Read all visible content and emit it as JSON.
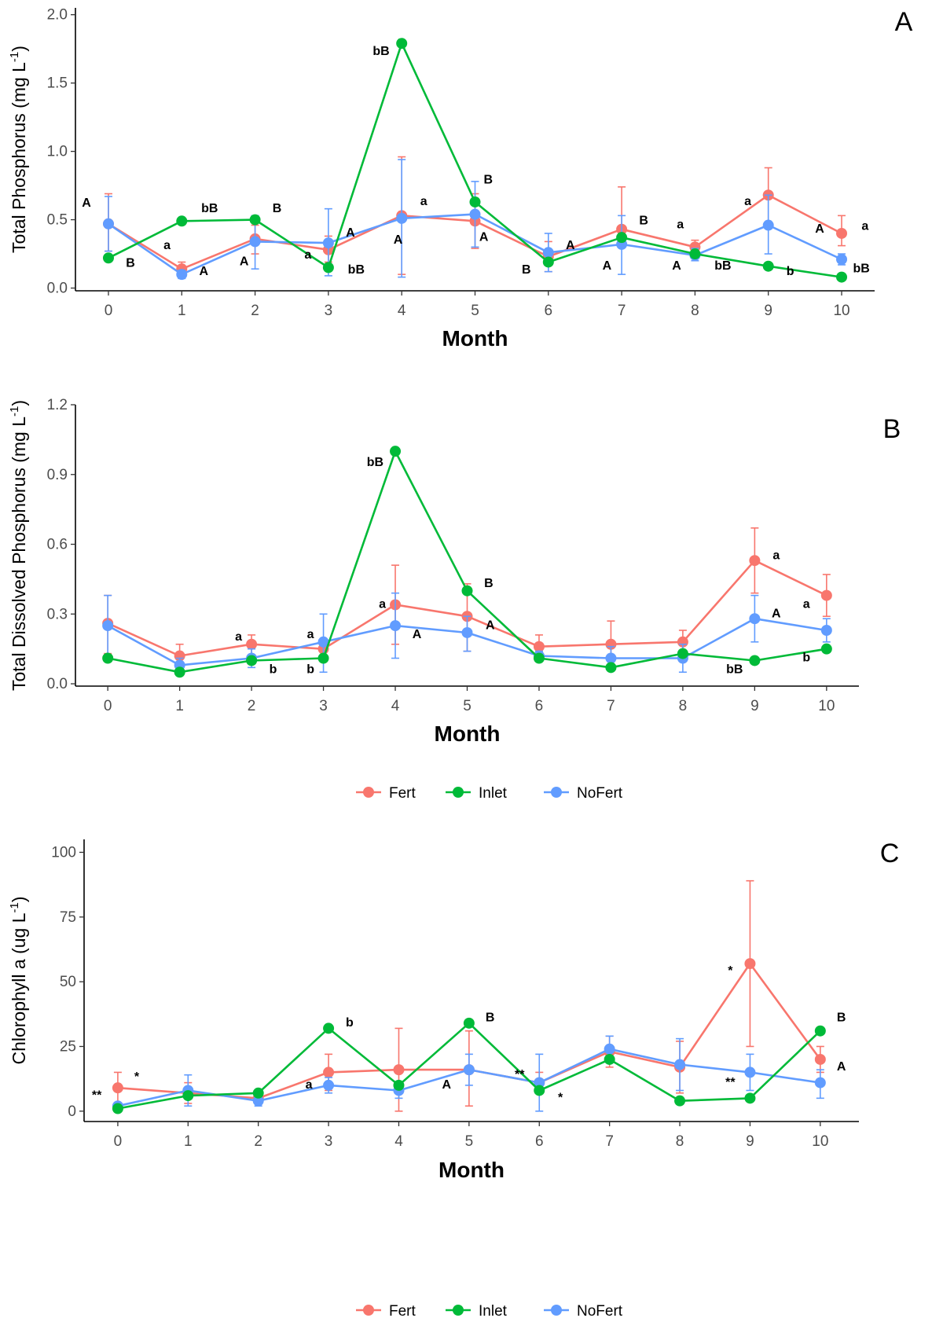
{
  "colors": {
    "Fert": "#F8766D",
    "Inlet": "#00BA38",
    "NoFert": "#619CFF"
  },
  "legend": {
    "entries": [
      "Fert",
      "Inlet",
      "NoFert"
    ]
  },
  "chart_data": [
    {
      "type": "line",
      "panel_label": "A",
      "title": "",
      "xlabel": "Month",
      "ylabel_main": "Total Phosphorus (mg L",
      "ylabel_sup": "-1",
      "ylabel_tail": ")",
      "x": [
        0,
        1,
        2,
        3,
        4,
        5,
        6,
        7,
        8,
        9,
        10
      ],
      "x_ticks": [
        "0",
        "1",
        "2",
        "3",
        "4",
        "5",
        "6",
        "7",
        "8",
        "9",
        "10"
      ],
      "y_ticks": [
        0.0,
        0.5,
        1.0,
        1.5,
        2.0
      ],
      "y_tick_labels": [
        "0.0",
        "0.5",
        "1.0",
        "1.5",
        "2.0"
      ],
      "ylim": [
        -0.02,
        2.05
      ],
      "grid": false,
      "series": [
        {
          "name": "Fert",
          "values": [
            0.47,
            0.14,
            0.36,
            0.28,
            0.53,
            0.49,
            0.23,
            0.43,
            0.3,
            0.68,
            0.4
          ],
          "err_low": [
            0.27,
            0.09,
            0.25,
            0.19,
            0.1,
            0.29,
            0.12,
            0.3,
            0.26,
            0.47,
            0.31
          ],
          "err_high": [
            0.69,
            0.19,
            0.46,
            0.38,
            0.96,
            0.69,
            0.34,
            0.74,
            0.35,
            0.88,
            0.53
          ]
        },
        {
          "name": "Inlet",
          "values": [
            0.22,
            0.49,
            0.5,
            0.15,
            1.79,
            0.63,
            0.19,
            0.37,
            0.25,
            0.16,
            0.08
          ],
          "err_low": [
            0.22,
            0.49,
            0.5,
            0.15,
            1.79,
            0.63,
            0.19,
            0.37,
            0.25,
            0.16,
            0.08
          ],
          "err_high": [
            0.22,
            0.49,
            0.5,
            0.15,
            1.79,
            0.63,
            0.19,
            0.37,
            0.25,
            0.16,
            0.08
          ]
        },
        {
          "name": "NoFert",
          "values": [
            0.47,
            0.1,
            0.34,
            0.33,
            0.51,
            0.54,
            0.26,
            0.32,
            0.24,
            0.46,
            0.21
          ],
          "err_low": [
            0.27,
            0.07,
            0.14,
            0.09,
            0.08,
            0.3,
            0.12,
            0.1,
            0.2,
            0.25,
            0.17
          ],
          "err_high": [
            0.67,
            0.13,
            0.53,
            0.58,
            0.94,
            0.78,
            0.4,
            0.53,
            0.29,
            0.68,
            0.25
          ]
        }
      ],
      "annotations": [
        {
          "text": "A",
          "x": -0.3,
          "y": 0.62
        },
        {
          "text": "B",
          "x": 0.3,
          "y": 0.18
        },
        {
          "text": "a",
          "x": 0.8,
          "y": 0.31
        },
        {
          "text": "A",
          "x": 1.3,
          "y": 0.12
        },
        {
          "text": "bB",
          "x": 1.38,
          "y": 0.58
        },
        {
          "text": "A",
          "x": 1.85,
          "y": 0.19
        },
        {
          "text": "B",
          "x": 2.3,
          "y": 0.58
        },
        {
          "text": "a",
          "x": 2.72,
          "y": 0.24
        },
        {
          "text": "A",
          "x": 3.3,
          "y": 0.4
        },
        {
          "text": "bB",
          "x": 3.38,
          "y": 0.13
        },
        {
          "text": "A",
          "x": 3.95,
          "y": 0.35
        },
        {
          "text": "bB",
          "x": 3.72,
          "y": 1.73
        },
        {
          "text": "a",
          "x": 4.3,
          "y": 0.63
        },
        {
          "text": "A",
          "x": 5.12,
          "y": 0.37
        },
        {
          "text": "B",
          "x": 5.18,
          "y": 0.79
        },
        {
          "text": "B",
          "x": 5.7,
          "y": 0.13
        },
        {
          "text": "A",
          "x": 6.3,
          "y": 0.31
        },
        {
          "text": "A",
          "x": 6.8,
          "y": 0.16
        },
        {
          "text": "B",
          "x": 7.3,
          "y": 0.49
        },
        {
          "text": "a",
          "x": 7.8,
          "y": 0.46
        },
        {
          "text": "A",
          "x": 7.75,
          "y": 0.16
        },
        {
          "text": "bB",
          "x": 8.38,
          "y": 0.16
        },
        {
          "text": "a",
          "x": 8.72,
          "y": 0.63
        },
        {
          "text": "b",
          "x": 9.3,
          "y": 0.12
        },
        {
          "text": "A",
          "x": 9.7,
          "y": 0.43
        },
        {
          "text": "a",
          "x": 10.32,
          "y": 0.45
        },
        {
          "text": "bB",
          "x": 10.27,
          "y": 0.14
        }
      ]
    },
    {
      "type": "line",
      "panel_label": "B",
      "title": "",
      "xlabel": "Month",
      "ylabel_main": "Total Dissolved Phosphorus (mg L",
      "ylabel_sup": "-1",
      "ylabel_tail": ")",
      "x": [
        0,
        1,
        2,
        3,
        4,
        5,
        6,
        7,
        8,
        9,
        10
      ],
      "x_ticks": [
        "0",
        "1",
        "2",
        "3",
        "4",
        "5",
        "6",
        "7",
        "8",
        "9",
        "10"
      ],
      "y_ticks": [
        0.0,
        0.3,
        0.6,
        0.9,
        1.2
      ],
      "y_tick_labels": [
        "0.0",
        "0.3",
        "0.6",
        "0.9",
        "1.2"
      ],
      "ylim": [
        -0.01,
        1.2
      ],
      "grid": false,
      "series": [
        {
          "name": "Fert",
          "values": [
            0.26,
            0.12,
            0.17,
            0.15,
            0.34,
            0.29,
            0.16,
            0.17,
            0.18,
            0.53,
            0.38
          ],
          "err_low": [
            0.13,
            0.07,
            0.12,
            0.12,
            0.17,
            0.14,
            0.11,
            0.06,
            0.13,
            0.39,
            0.29
          ],
          "err_high": [
            0.38,
            0.17,
            0.21,
            0.18,
            0.51,
            0.43,
            0.21,
            0.27,
            0.23,
            0.67,
            0.47
          ]
        },
        {
          "name": "Inlet",
          "values": [
            0.11,
            0.05,
            0.1,
            0.11,
            1.0,
            0.4,
            0.11,
            0.07,
            0.13,
            0.1,
            0.15
          ],
          "err_low": [
            0.11,
            0.05,
            0.1,
            0.11,
            1.0,
            0.4,
            0.11,
            0.07,
            0.13,
            0.1,
            0.15
          ],
          "err_high": [
            0.11,
            0.05,
            0.1,
            0.11,
            1.0,
            0.4,
            0.11,
            0.07,
            0.13,
            0.1,
            0.15
          ]
        },
        {
          "name": "NoFert",
          "values": [
            0.25,
            0.08,
            0.11,
            0.18,
            0.25,
            0.22,
            0.12,
            0.11,
            0.11,
            0.28,
            0.23
          ],
          "err_low": [
            0.12,
            0.06,
            0.07,
            0.05,
            0.11,
            0.14,
            0.1,
            0.06,
            0.05,
            0.18,
            0.18
          ],
          "err_high": [
            0.38,
            0.11,
            0.15,
            0.3,
            0.39,
            0.29,
            0.14,
            0.16,
            0.17,
            0.38,
            0.28
          ]
        }
      ],
      "annotations": [
        {
          "text": "a",
          "x": 1.82,
          "y": 0.2
        },
        {
          "text": "b",
          "x": 2.3,
          "y": 0.06
        },
        {
          "text": "a",
          "x": 2.82,
          "y": 0.21
        },
        {
          "text": "b",
          "x": 2.82,
          "y": 0.06
        },
        {
          "text": "bB",
          "x": 3.72,
          "y": 0.95
        },
        {
          "text": "a",
          "x": 3.82,
          "y": 0.34
        },
        {
          "text": "A",
          "x": 4.3,
          "y": 0.21
        },
        {
          "text": "B",
          "x": 5.3,
          "y": 0.43
        },
        {
          "text": "A",
          "x": 5.32,
          "y": 0.25
        },
        {
          "text": "a",
          "x": 9.3,
          "y": 0.55
        },
        {
          "text": "A",
          "x": 9.3,
          "y": 0.3
        },
        {
          "text": "a",
          "x": 9.72,
          "y": 0.34
        },
        {
          "text": "bB",
          "x": 8.72,
          "y": 0.06
        },
        {
          "text": "b",
          "x": 9.72,
          "y": 0.11
        }
      ]
    },
    {
      "type": "line",
      "panel_label": "C",
      "title": "",
      "xlabel": "Month",
      "ylabel_main": "Chlorophyll a (ug L",
      "ylabel_sup": "-1",
      "ylabel_tail": ")",
      "x": [
        0,
        1,
        2,
        3,
        4,
        5,
        6,
        7,
        8,
        9,
        10
      ],
      "x_ticks": [
        "0",
        "1",
        "2",
        "3",
        "4",
        "5",
        "6",
        "7",
        "8",
        "9",
        "10"
      ],
      "y_ticks": [
        0,
        25,
        50,
        75,
        100
      ],
      "y_tick_labels": [
        "0",
        "25",
        "50",
        "75",
        "100"
      ],
      "ylim": [
        -4,
        105
      ],
      "grid": false,
      "series": [
        {
          "name": "Fert",
          "values": [
            9,
            7,
            5,
            15,
            16,
            16,
            11,
            23,
            17,
            57,
            20
          ],
          "err_low": [
            3,
            3,
            3,
            8,
            0,
            2,
            7,
            17,
            7,
            25,
            15
          ],
          "err_high": [
            15,
            11,
            7,
            22,
            32,
            31,
            15,
            29,
            27,
            89,
            25
          ]
        },
        {
          "name": "Inlet",
          "values": [
            1,
            6,
            7,
            32,
            10,
            34,
            8,
            20,
            4,
            5,
            31
          ],
          "err_low": [
            1,
            6,
            7,
            32,
            10,
            34,
            8,
            20,
            4,
            5,
            31
          ],
          "err_high": [
            1,
            6,
            7,
            32,
            10,
            34,
            8,
            20,
            4,
            5,
            31
          ]
        },
        {
          "name": "NoFert",
          "values": [
            2,
            8,
            4,
            10,
            8,
            16,
            11,
            24,
            18,
            15,
            11
          ],
          "err_low": [
            1,
            2,
            2,
            7,
            5,
            10,
            0,
            19,
            8,
            8,
            5
          ],
          "err_high": [
            3,
            14,
            6,
            13,
            11,
            22,
            22,
            29,
            28,
            22,
            16
          ]
        }
      ],
      "annotations": [
        {
          "text": "**",
          "x": -0.3,
          "y": 6
        },
        {
          "text": "*",
          "x": 0.27,
          "y": 13
        },
        {
          "text": "a",
          "x": 2.72,
          "y": 10
        },
        {
          "text": "b",
          "x": 3.3,
          "y": 34
        },
        {
          "text": "A",
          "x": 4.68,
          "y": 10
        },
        {
          "text": "B",
          "x": 5.3,
          "y": 36
        },
        {
          "text": "**",
          "x": 5.72,
          "y": 14
        },
        {
          "text": "*",
          "x": 6.3,
          "y": 5
        },
        {
          "text": "*",
          "x": 8.72,
          "y": 54
        },
        {
          "text": "**",
          "x": 8.72,
          "y": 11
        },
        {
          "text": "B",
          "x": 10.3,
          "y": 36
        },
        {
          "text": "A",
          "x": 10.3,
          "y": 17
        }
      ]
    }
  ]
}
